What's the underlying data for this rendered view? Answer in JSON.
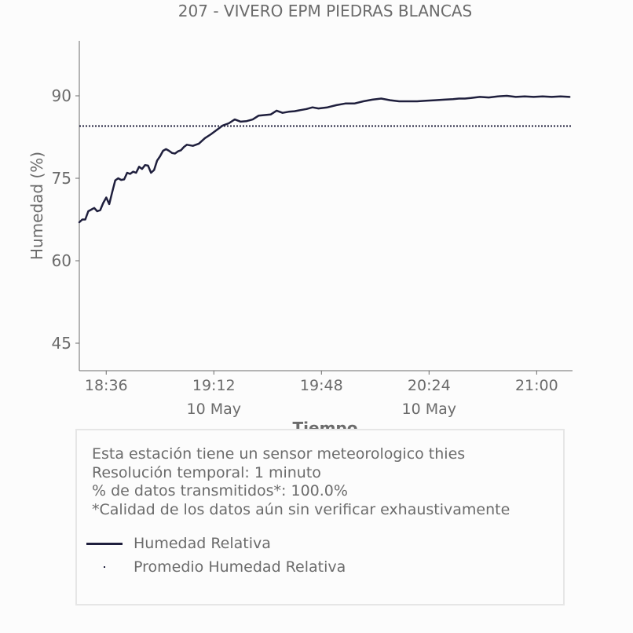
{
  "chart_data": {
    "type": "line",
    "title": "207 - VIVERO EPM PIEDRAS BLANCAS",
    "xlabel": "Tiempo",
    "ylabel": "Humedad (%)",
    "ylim": [
      40,
      100
    ],
    "yticks": [
      45,
      60,
      75,
      90
    ],
    "xlim": [
      "18:27",
      "21:12"
    ],
    "xticks": [
      {
        "time": "18:36",
        "label": "18:36",
        "sublabel": ""
      },
      {
        "time": "19:12",
        "label": "19:12",
        "sublabel": "10 May"
      },
      {
        "time": "19:48",
        "label": "19:48",
        "sublabel": ""
      },
      {
        "time": "20:24",
        "label": "20:24",
        "sublabel": "10 May"
      },
      {
        "time": "21:00",
        "label": "21:00",
        "sublabel": ""
      }
    ],
    "grid": false,
    "series": [
      {
        "name": "Humedad Relativa",
        "color": "#1f1f3d",
        "style": "solid",
        "x": [
          "18:27",
          "18:28",
          "18:29",
          "18:30",
          "18:31",
          "18:32",
          "18:33",
          "18:34",
          "18:35",
          "18:36",
          "18:37",
          "18:38",
          "18:39",
          "18:40",
          "18:41",
          "18:42",
          "18:43",
          "18:44",
          "18:45",
          "18:46",
          "18:47",
          "18:48",
          "18:49",
          "18:50",
          "18:51",
          "18:52",
          "18:53",
          "18:54",
          "18:55",
          "18:56",
          "18:57",
          "18:58",
          "18:59",
          "19:00",
          "19:01",
          "19:02",
          "19:03",
          "19:05",
          "19:07",
          "19:09",
          "19:11",
          "19:13",
          "19:15",
          "19:17",
          "19:19",
          "19:21",
          "19:23",
          "19:25",
          "19:27",
          "19:29",
          "19:31",
          "19:33",
          "19:35",
          "19:37",
          "19:39",
          "19:41",
          "19:43",
          "19:45",
          "19:47",
          "19:50",
          "19:53",
          "19:56",
          "19:59",
          "20:02",
          "20:05",
          "20:08",
          "20:11",
          "20:14",
          "20:17",
          "20:20",
          "20:23",
          "20:26",
          "20:29",
          "20:32",
          "20:34",
          "20:36",
          "20:38",
          "20:41",
          "20:44",
          "20:47",
          "20:50",
          "20:53",
          "20:56",
          "20:59",
          "21:02",
          "21:05",
          "21:08",
          "21:11"
        ],
        "values": [
          67.0,
          67.5,
          67.5,
          69.0,
          69.3,
          69.6,
          69.0,
          69.2,
          70.5,
          71.5,
          70.3,
          72.5,
          74.6,
          75.0,
          74.7,
          74.8,
          76.0,
          75.8,
          76.2,
          76.0,
          77.1,
          76.7,
          77.4,
          77.3,
          76.0,
          76.5,
          78.2,
          79.0,
          80.0,
          80.3,
          80.0,
          79.6,
          79.5,
          79.9,
          80.1,
          80.7,
          81.1,
          80.9,
          81.3,
          82.3,
          83.0,
          83.8,
          84.6,
          85.0,
          85.7,
          85.3,
          85.4,
          85.7,
          86.4,
          86.5,
          86.6,
          87.3,
          86.9,
          87.1,
          87.2,
          87.4,
          87.6,
          87.9,
          87.7,
          87.9,
          88.3,
          88.6,
          88.6,
          89.0,
          89.3,
          89.5,
          89.2,
          89.0,
          89.0,
          89.0,
          89.1,
          89.2,
          89.3,
          89.4,
          89.5,
          89.5,
          89.6,
          89.8,
          89.7,
          89.9,
          90.0,
          89.8,
          89.9,
          89.8,
          89.9,
          89.8,
          89.9,
          89.8
        ]
      },
      {
        "name": "Promedio Humedad Relativa",
        "color": "#1f1f3d",
        "style": "dotted",
        "values": [
          84.5
        ]
      }
    ]
  },
  "info": {
    "line1": "Esta estación tiene un sensor meteorologico thies",
    "line2": "Resolución temporal: 1 minuto",
    "line3": "% de datos transmitidos*: 100.0%",
    "line4": "*Calidad de los datos aún sin verificar exhaustivamente"
  },
  "legend": {
    "item1": "Humedad Relativa",
    "item2": "Promedio Humedad Relativa"
  }
}
